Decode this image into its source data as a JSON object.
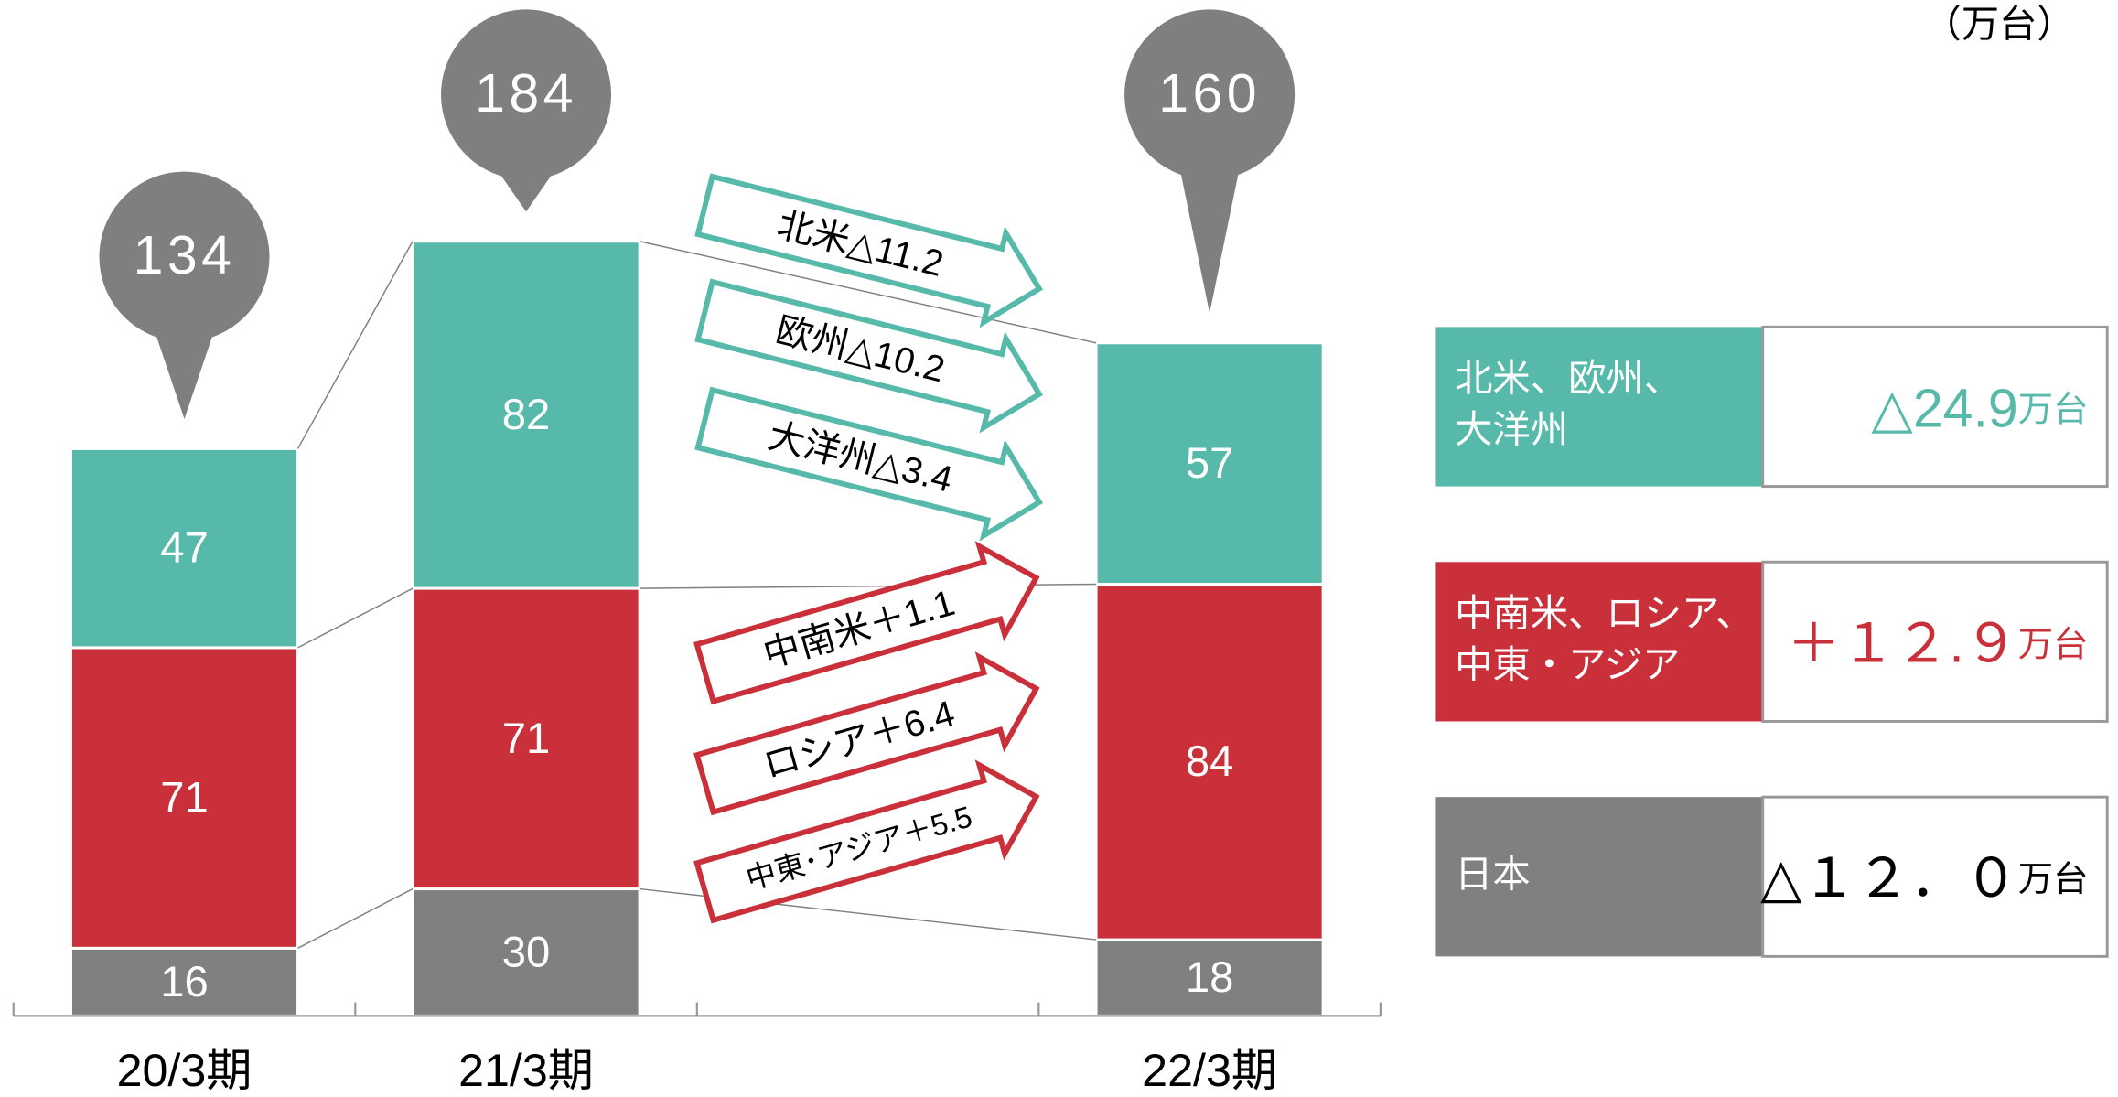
{
  "chart_data": {
    "type": "stacked_bar",
    "unit": "（万台）",
    "categories": [
      "20/3期",
      "21/3期",
      null,
      "22/3期"
    ],
    "ylim": [
      0,
      240
    ],
    "series": [
      {
        "name": "日本",
        "color": "#808080",
        "values": [
          16,
          30,
          null,
          18
        ],
        "change": "△１２．０",
        "change_unit": "万台",
        "change_color": "#000000"
      },
      {
        "name": "中南米、ロシア、\n中東・アジア",
        "color": "#c9303a",
        "values": [
          71,
          71,
          null,
          84
        ],
        "change": "＋１２.９",
        "change_unit": "万台",
        "change_color": "#c9303a"
      },
      {
        "name": "北米、欧州、\n大洋州",
        "color": "#56b9a9",
        "values": [
          47,
          82,
          null,
          57
        ],
        "change": "△24.9",
        "change_unit": "万台",
        "change_color": "#56b9a9"
      }
    ],
    "totals": {
      "color": "#7f7f7f",
      "values": [
        134,
        184,
        null,
        160
      ]
    },
    "arrows": [
      {
        "text": "北米△11.2",
        "color": "#56b9a9"
      },
      {
        "text": "欧州△10.2",
        "color": "#56b9a9"
      },
      {
        "text": "大洋州△3.4",
        "color": "#56b9a9"
      },
      {
        "text": "中南米＋1.1",
        "color": "#c9303a"
      },
      {
        "text": "ロシア＋6.4",
        "color": "#c9303a"
      },
      {
        "text": "中東･アジア＋5.5",
        "color": "#c9303a"
      }
    ]
  }
}
